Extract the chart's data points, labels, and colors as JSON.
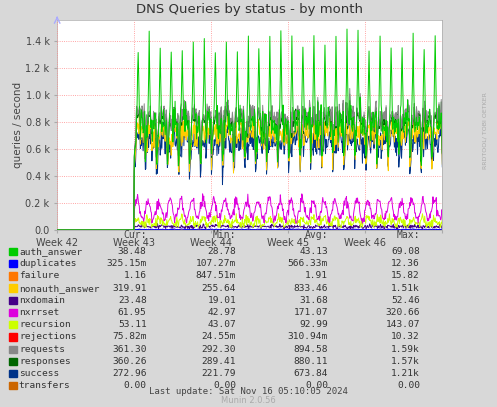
{
  "title": "DNS Queries by status - by month",
  "ylabel": "queries / second",
  "background_color": "#d8d8d8",
  "plot_bg_color": "#ffffff",
  "grid_color": "#ff8888",
  "x_labels": [
    "Week 42",
    "Week 43",
    "Week 44",
    "Week 45",
    "Week 46"
  ],
  "ylim": [
    0,
    1.55
  ],
  "yticks": [
    0.0,
    0.2,
    0.4,
    0.6,
    0.8,
    1.0,
    1.2,
    1.4
  ],
  "ytick_labels": [
    "0.0",
    "0.2 k",
    "0.4 k",
    "0.6 k",
    "0.8 k",
    "1.0 k",
    "1.2 k",
    "1.4 k"
  ],
  "legend_entries": [
    {
      "label": "auth_answer",
      "color": "#00cc00"
    },
    {
      "label": "duplicates",
      "color": "#0000ff"
    },
    {
      "label": "failure",
      "color": "#ff7700"
    },
    {
      "label": "nonauth_answer",
      "color": "#ffcc00"
    },
    {
      "label": "nxdomain",
      "color": "#440088"
    },
    {
      "label": "nxrrset",
      "color": "#dd00dd"
    },
    {
      "label": "recursion",
      "color": "#ccff00"
    },
    {
      "label": "rejections",
      "color": "#ff0000"
    },
    {
      "label": "requests",
      "color": "#888888"
    },
    {
      "label": "responses",
      "color": "#006600"
    },
    {
      "label": "success",
      "color": "#003388"
    },
    {
      "label": "transfers",
      "color": "#cc6600"
    }
  ],
  "table": {
    "headers": [
      "Cur:",
      "Min:",
      "Avg:",
      "Max:"
    ],
    "rows": [
      [
        "auth_answer",
        "38.48",
        "28.78",
        "43.13",
        "69.08"
      ],
      [
        "duplicates",
        "325.15m",
        "107.27m",
        "566.33m",
        "12.36"
      ],
      [
        "failure",
        "1.16",
        "847.51m",
        "1.91",
        "15.82"
      ],
      [
        "nonauth_answer",
        "319.91",
        "255.64",
        "833.46",
        "1.51k"
      ],
      [
        "nxdomain",
        "23.48",
        "19.01",
        "31.68",
        "52.46"
      ],
      [
        "nxrrset",
        "61.95",
        "42.97",
        "171.07",
        "320.66"
      ],
      [
        "recursion",
        "53.11",
        "43.07",
        "92.99",
        "143.07"
      ],
      [
        "rejections",
        "75.82m",
        "24.55m",
        "310.94m",
        "10.32"
      ],
      [
        "requests",
        "361.30",
        "292.30",
        "894.58",
        "1.59k"
      ],
      [
        "responses",
        "360.26",
        "289.41",
        "880.11",
        "1.57k"
      ],
      [
        "success",
        "272.96",
        "221.79",
        "673.84",
        "1.21k"
      ],
      [
        "transfers",
        "0.00",
        "0.00",
        "0.00",
        "0.00"
      ]
    ]
  },
  "last_update": "Last update: Sat Nov 16 05:10:05 2024",
  "munin_version": "Munin 2.0.56",
  "watermark": "RRDTOOL/ TOBI OETKER"
}
